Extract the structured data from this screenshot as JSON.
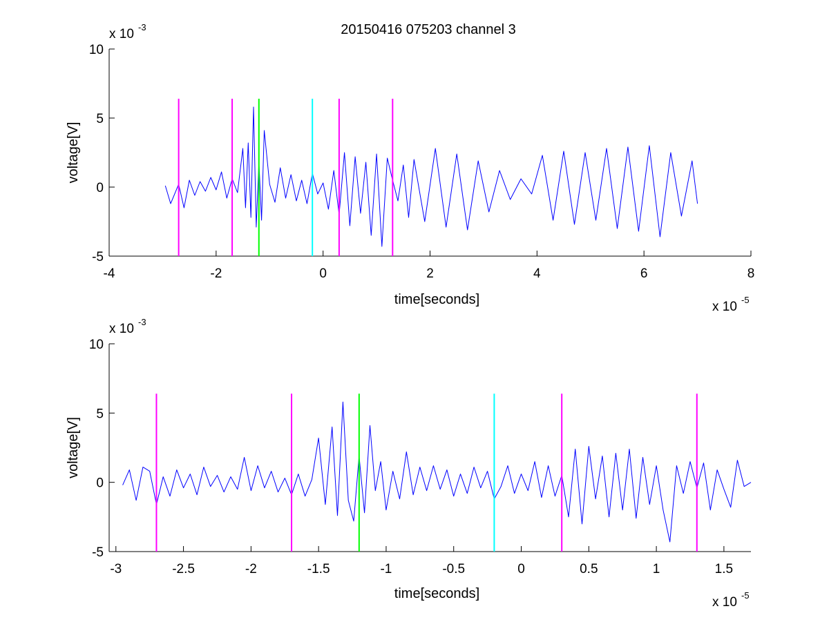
{
  "figure": {
    "title": "20150416 075203 channel 3"
  },
  "chart_data": [
    {
      "type": "line",
      "xlabel": "time[seconds]",
      "ylabel": "voltage[V]",
      "x_multiplier_label": "x 10",
      "x_multiplier_exp": "-5",
      "y_multiplier_label": "x 10",
      "y_multiplier_exp": "-3",
      "xlim": [
        -4,
        8
      ],
      "ylim": [
        -5,
        10
      ],
      "xticks": [
        "-4",
        "-2",
        "0",
        "2",
        "4",
        "6",
        "8"
      ],
      "yticks": [
        "-5",
        "0",
        "5",
        "10"
      ],
      "series": [
        {
          "color": "#0000ff",
          "x": [
            -2.95,
            -2.85,
            -2.7,
            -2.6,
            -2.5,
            -2.4,
            -2.3,
            -2.2,
            -2.1,
            -2.0,
            -1.9,
            -1.8,
            -1.7,
            -1.6,
            -1.5,
            -1.45,
            -1.4,
            -1.35,
            -1.3,
            -1.25,
            -1.2,
            -1.15,
            -1.1,
            -1.0,
            -0.9,
            -0.8,
            -0.7,
            -0.6,
            -0.5,
            -0.4,
            -0.3,
            -0.2,
            -0.1,
            0.0,
            0.1,
            0.2,
            0.3,
            0.4,
            0.5,
            0.6,
            0.7,
            0.8,
            0.9,
            1.0,
            1.1,
            1.2,
            1.3,
            1.4,
            1.5,
            1.6,
            1.7,
            1.9,
            2.1,
            2.3,
            2.5,
            2.7,
            2.9,
            3.1,
            3.3,
            3.5,
            3.7,
            3.9,
            4.1,
            4.3,
            4.5,
            4.7,
            4.9,
            5.1,
            5.3,
            5.5,
            5.7,
            5.9,
            6.1,
            6.3,
            6.5,
            6.7,
            6.9,
            7.0
          ],
          "values": [
            0.1,
            -1.2,
            0.2,
            -1.5,
            0.5,
            -0.6,
            0.4,
            -0.3,
            0.7,
            -0.2,
            1.1,
            -0.8,
            0.6,
            -0.4,
            2.8,
            -1.5,
            3.2,
            -2.2,
            5.8,
            -2.9,
            1.8,
            -2.4,
            4.1,
            0.2,
            -1.1,
            1.4,
            -0.8,
            0.9,
            -1.0,
            0.5,
            -1.2,
            1.0,
            -0.5,
            0.3,
            -1.6,
            1.2,
            -2.0,
            2.5,
            -2.8,
            2.2,
            -1.9,
            1.8,
            -3.5,
            2.4,
            -4.3,
            2.1,
            0.5,
            -1.0,
            1.6,
            -2.2,
            2.0,
            -2.5,
            2.8,
            -2.9,
            2.4,
            -3.1,
            1.9,
            -1.8,
            1.2,
            -0.9,
            0.6,
            -0.5,
            2.3,
            -2.4,
            2.6,
            -2.7,
            2.5,
            -2.4,
            2.8,
            -3.0,
            2.9,
            -3.2,
            3.0,
            -3.6,
            2.5,
            -2.1,
            1.9,
            -1.2
          ]
        }
      ],
      "vertical_markers": [
        {
          "x": -2.7,
          "color": "#ff00ff"
        },
        {
          "x": -1.7,
          "color": "#ff00ff"
        },
        {
          "x": -1.2,
          "color": "#00ff00"
        },
        {
          "x": -0.2,
          "color": "#00ffff"
        },
        {
          "x": 0.3,
          "color": "#ff00ff"
        },
        {
          "x": 1.3,
          "color": "#ff00ff"
        }
      ],
      "marker_range": [
        -5,
        6.4
      ]
    },
    {
      "type": "line",
      "xlabel": "time[seconds]",
      "ylabel": "voltage[V]",
      "x_multiplier_label": "x 10",
      "x_multiplier_exp": "-5",
      "y_multiplier_label": "x 10",
      "y_multiplier_exp": "-3",
      "xlim": [
        -3.05,
        1.7
      ],
      "ylim": [
        -5,
        10
      ],
      "xticks": [
        "-3",
        "-2.5",
        "-2",
        "-1.5",
        "-1",
        "-0.5",
        "0",
        "0.5",
        "1",
        "1.5"
      ],
      "xtick_values": [
        -3,
        -2.5,
        -2,
        -1.5,
        -1,
        -0.5,
        0,
        0.5,
        1,
        1.5
      ],
      "yticks": [
        "-5",
        "0",
        "5",
        "10"
      ],
      "series": [
        {
          "color": "#0000ff",
          "x": [
            -2.95,
            -2.9,
            -2.85,
            -2.8,
            -2.75,
            -2.7,
            -2.65,
            -2.6,
            -2.55,
            -2.5,
            -2.45,
            -2.4,
            -2.35,
            -2.3,
            -2.25,
            -2.2,
            -2.15,
            -2.1,
            -2.05,
            -2.0,
            -1.95,
            -1.9,
            -1.85,
            -1.8,
            -1.75,
            -1.7,
            -1.65,
            -1.6,
            -1.55,
            -1.5,
            -1.45,
            -1.4,
            -1.36,
            -1.32,
            -1.28,
            -1.24,
            -1.2,
            -1.16,
            -1.12,
            -1.08,
            -1.04,
            -1.0,
            -0.95,
            -0.9,
            -0.85,
            -0.8,
            -0.75,
            -0.7,
            -0.65,
            -0.6,
            -0.55,
            -0.5,
            -0.45,
            -0.4,
            -0.35,
            -0.3,
            -0.25,
            -0.2,
            -0.15,
            -0.1,
            -0.05,
            0.0,
            0.05,
            0.1,
            0.15,
            0.2,
            0.25,
            0.3,
            0.35,
            0.4,
            0.45,
            0.5,
            0.55,
            0.6,
            0.65,
            0.7,
            0.75,
            0.8,
            0.85,
            0.9,
            0.95,
            1.0,
            1.05,
            1.1,
            1.15,
            1.2,
            1.25,
            1.3,
            1.35,
            1.4,
            1.45,
            1.5,
            1.55,
            1.6,
            1.65,
            1.7
          ],
          "values": [
            -0.2,
            0.9,
            -1.3,
            1.1,
            0.8,
            -1.6,
            0.4,
            -1.0,
            0.9,
            -0.4,
            0.6,
            -0.9,
            1.1,
            -0.3,
            0.5,
            -0.7,
            0.4,
            -0.5,
            1.8,
            -0.6,
            1.2,
            -0.4,
            0.8,
            -0.7,
            0.3,
            -0.9,
            0.6,
            -1.0,
            0.2,
            3.2,
            -1.6,
            4.0,
            -2.4,
            5.8,
            -1.3,
            -2.8,
            1.9,
            -2.2,
            4.1,
            -0.6,
            1.5,
            -2.0,
            0.8,
            -1.2,
            2.2,
            -0.9,
            1.1,
            -0.6,
            1.2,
            -0.5,
            0.9,
            -1.0,
            0.6,
            -0.8,
            1.1,
            -0.4,
            0.8,
            -1.2,
            -0.3,
            1.2,
            -0.8,
            0.6,
            -0.6,
            1.5,
            -1.1,
            1.2,
            -1.0,
            0.5,
            -2.5,
            2.4,
            -3.0,
            2.6,
            -1.2,
            1.9,
            -2.5,
            2.1,
            -2.0,
            2.4,
            -2.6,
            1.8,
            -1.6,
            1.2,
            -2.0,
            -4.3,
            1.2,
            -0.8,
            1.5,
            -0.4,
            1.4,
            -2.0,
            0.9,
            -0.5,
            -1.8,
            1.6,
            -0.3,
            0.0
          ]
        }
      ],
      "vertical_markers": [
        {
          "x": -2.7,
          "color": "#ff00ff"
        },
        {
          "x": -1.7,
          "color": "#ff00ff"
        },
        {
          "x": -1.2,
          "color": "#00ff00"
        },
        {
          "x": -0.2,
          "color": "#00ffff"
        },
        {
          "x": 0.3,
          "color": "#ff00ff"
        },
        {
          "x": 1.3,
          "color": "#ff00ff"
        }
      ],
      "marker_range": [
        -5,
        6.4
      ]
    }
  ]
}
